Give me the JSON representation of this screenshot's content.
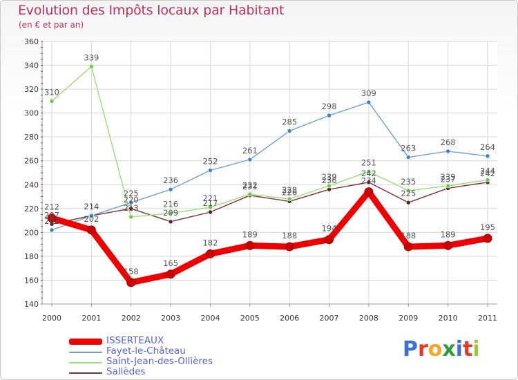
{
  "header": {
    "title": "Evolution des Impôts locaux par Habitant",
    "subtitle": "(en € et par an)"
  },
  "logo": {
    "text": "Proxiti",
    "letters": [
      {
        "ch": "P",
        "color": "#3a6fd8"
      },
      {
        "ch": "r",
        "color": "#e03b2a"
      },
      {
        "ch": "o",
        "color": "#f5a623"
      },
      {
        "ch": "x",
        "color": "#2a9d3a"
      },
      {
        "ch": "i",
        "color": "#3a6fd8"
      },
      {
        "ch": "t",
        "color": "#e03b2a"
      },
      {
        "ch": "i",
        "color": "#9bc53d"
      }
    ]
  },
  "chart_data": {
    "type": "line",
    "title": "Evolution des Impôts locaux par Habitant",
    "subtitle": "(en € et par an)",
    "xlabel": "",
    "ylabel": "",
    "categories": [
      "2000",
      "2001",
      "2002",
      "2003",
      "2004",
      "2005",
      "2006",
      "2007",
      "2008",
      "2009",
      "2010",
      "2011"
    ],
    "ylim": [
      140,
      360
    ],
    "yticks": [
      140,
      160,
      180,
      200,
      220,
      240,
      260,
      280,
      300,
      320,
      340,
      360
    ],
    "grid": true,
    "legend_position": "bottom-left",
    "series": [
      {
        "name": "ISSERTEAUX",
        "color": "#ee0000",
        "marker_color": "#cc0000",
        "thick": true,
        "values": [
          212,
          202,
          158,
          165,
          182,
          189,
          188,
          194,
          234,
          188,
          189,
          195
        ],
        "labels": [
          "212",
          "202",
          "158",
          "165",
          "182",
          "189",
          "188",
          "194",
          "234",
          "188",
          "189",
          "195"
        ]
      },
      {
        "name": "Fayet-le-Château",
        "color": "#6f9fd8",
        "marker_color": "#3a7fcc",
        "thick": false,
        "values": [
          202,
          214,
          225,
          236,
          252,
          261,
          285,
          298,
          309,
          263,
          268,
          264
        ],
        "labels": [
          "202",
          "214",
          "225",
          "236",
          "252",
          "261",
          "285",
          "298",
          "309",
          "263",
          "268",
          "264"
        ]
      },
      {
        "name": "Saint-Jean-des-Ollières",
        "color": "#99dd77",
        "marker_color": "#66cc44",
        "thick": false,
        "values": [
          310,
          339,
          213,
          216,
          221,
          232,
          228,
          239,
          251,
          235,
          239,
          244
        ],
        "labels": [
          "310",
          "339",
          "213",
          "216",
          "221",
          "232",
          "228",
          "239",
          "251",
          "235",
          "239",
          "244"
        ]
      },
      {
        "name": "Sallèdes",
        "color": "#7a3030",
        "marker_color": "#5a1a1a",
        "thick": false,
        "values": [
          207,
          214,
          220,
          209,
          217,
          231,
          226,
          236,
          242,
          225,
          237,
          242
        ],
        "labels": [
          "207",
          "214",
          "220",
          "209",
          "217",
          "231",
          "226",
          "236",
          "242",
          "225",
          "237",
          "242"
        ]
      }
    ]
  }
}
